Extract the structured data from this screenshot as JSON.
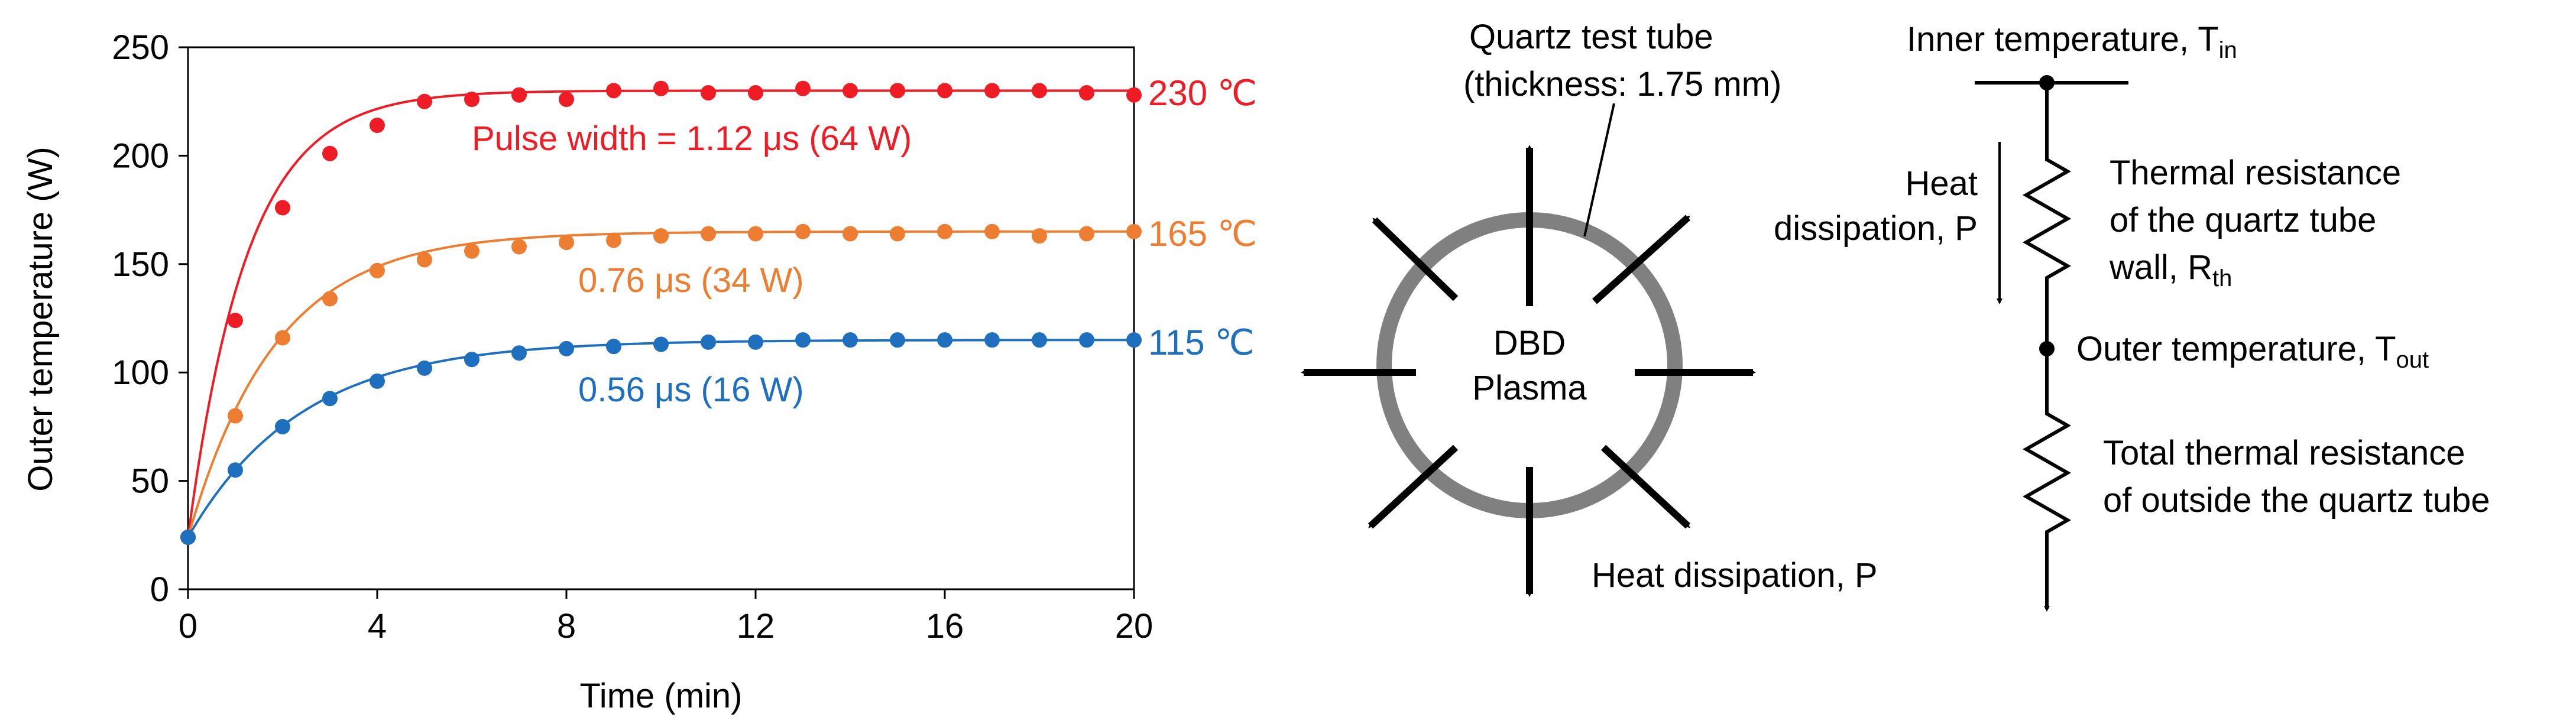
{
  "chart_data": {
    "type": "line",
    "xlabel": "Time (min)",
    "ylabel": "Outer temperature (W)",
    "xlim": [
      0,
      20
    ],
    "ylim": [
      0,
      250
    ],
    "xticks": [
      "0",
      "4",
      "8",
      "12",
      "16",
      "20"
    ],
    "yticks": [
      "0",
      "50",
      "100",
      "150",
      "200",
      "250"
    ],
    "grid": false,
    "series": [
      {
        "name": "Pulse width = 1.12 μs (64 W)",
        "end_label": "230 ℃",
        "color": "#ee1c25",
        "x": [
          0,
          1,
          2,
          3,
          4,
          5,
          6,
          7,
          8,
          9,
          10,
          11,
          12,
          13,
          14,
          15,
          16,
          17,
          18,
          19,
          20
        ],
        "values": [
          24,
          124,
          176,
          201,
          214,
          225,
          226,
          228,
          226,
          230,
          231,
          229,
          229,
          231,
          230,
          230,
          230,
          230,
          230,
          229,
          228
        ],
        "fit": {
          "start": 24,
          "plateau": 230,
          "tau": 1.25
        }
      },
      {
        "name": "0.76 μs (34 W)",
        "end_label": "165 ℃",
        "color": "#ed7d31",
        "x": [
          0,
          1,
          2,
          3,
          4,
          5,
          6,
          7,
          8,
          9,
          10,
          11,
          12,
          13,
          14,
          15,
          16,
          17,
          18,
          19,
          20
        ],
        "values": [
          24,
          80,
          116,
          134,
          147,
          152,
          156,
          158,
          160,
          161,
          163,
          164,
          164,
          165,
          164,
          164,
          165,
          165,
          163,
          164,
          165
        ],
        "fit": {
          "start": 24,
          "plateau": 165,
          "tau": 1.85
        }
      },
      {
        "name": "0.56 μs (16 W)",
        "end_label": "115 ℃",
        "color": "#1f6fbf",
        "x": [
          0,
          1,
          2,
          3,
          4,
          5,
          6,
          7,
          8,
          9,
          10,
          11,
          12,
          13,
          14,
          15,
          16,
          17,
          18,
          19,
          20
        ],
        "values": [
          24,
          55,
          75,
          88,
          96,
          102,
          106,
          109,
          111,
          112,
          113,
          114,
          114,
          115,
          115,
          115,
          115,
          115,
          115,
          115,
          115
        ],
        "fit": {
          "start": 24,
          "plateau": 115,
          "tau": 2.4
        }
      }
    ]
  },
  "diagram": {
    "tube_label_line1": "Quartz test tube",
    "tube_label_line2": "(thickness: 1.75 mm)",
    "plasma_line1": "DBD",
    "plasma_line2": "Plasma",
    "heat_dissipation_bottom": "Heat dissipation, P"
  },
  "circuit": {
    "inner_temp": "Inner temperature, T",
    "inner_temp_sub": "in",
    "heat_line1": "Heat",
    "heat_line2": "dissipation, P",
    "rth_line1": "Thermal resistance",
    "rth_line2": "of the quartz tube",
    "rth_line3": "wall, R",
    "rth_sub": "th",
    "outer_temp": "Outer temperature, T",
    "outer_temp_sub": "out",
    "total_line1": "Total thermal resistance",
    "total_line2": "of outside the quartz tube"
  }
}
